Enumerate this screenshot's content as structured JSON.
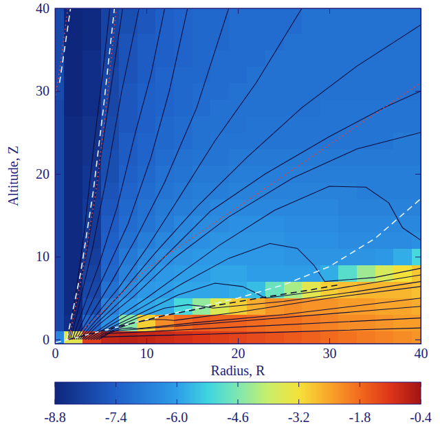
{
  "chart_data": {
    "type": "heatmap",
    "xlabel": "Radius, R",
    "ylabel": "Altitude, Z",
    "xlim": [
      0,
      40
    ],
    "ylim": [
      -0.5,
      40
    ],
    "xticks": [
      0,
      10,
      20,
      30,
      40
    ],
    "yticks": [
      0,
      10,
      20,
      30,
      40
    ],
    "x": [
      0,
      2,
      4,
      6,
      8,
      10,
      12,
      14,
      16,
      18,
      20,
      22,
      24,
      26,
      28,
      30,
      32,
      34,
      36,
      38,
      40
    ],
    "y": [
      0,
      2,
      4,
      6,
      8,
      10,
      12,
      14,
      16,
      18,
      20,
      22,
      24,
      26,
      28,
      30,
      32,
      34,
      36,
      38,
      40
    ],
    "cells": [
      [
        -6.5,
        -3.5,
        -1.2,
        -0.8,
        -0.7,
        -0.8,
        -0.9,
        -1.0,
        -1.1,
        -1.2,
        -1.3,
        -1.4,
        -1.5,
        -1.6,
        -1.7,
        -1.8,
        -1.9,
        -2.0,
        -2.1,
        -2.2,
        -2.3
      ],
      [
        -8.0,
        -8.6,
        -7.2,
        -6.3,
        -4.5,
        -3.0,
        -2.2,
        -1.8,
        -1.6,
        -1.7,
        -1.7,
        -1.8,
        -1.9,
        -1.9,
        -2.0,
        -2.1,
        -2.2,
        -2.2,
        -2.3,
        -2.4,
        -2.4
      ],
      [
        -8.0,
        -8.7,
        -7.8,
        -6.6,
        -6.1,
        -5.9,
        -5.8,
        -5.2,
        -4.4,
        -3.6,
        -3.0,
        -2.6,
        -2.3,
        -2.2,
        -2.3,
        -2.3,
        -2.4,
        -2.4,
        -2.5,
        -2.5,
        -2.6
      ],
      [
        -8.0,
        -8.7,
        -8.0,
        -7.0,
        -6.4,
        -6.1,
        -6.0,
        -5.9,
        -5.9,
        -5.9,
        -5.8,
        -5.6,
        -4.8,
        -4.2,
        -3.5,
        -3.0,
        -2.8,
        -2.7,
        -2.7,
        -2.7,
        -2.8
      ],
      [
        -8.0,
        -8.7,
        -8.1,
        -7.2,
        -6.6,
        -6.3,
        -6.1,
        -6.0,
        -6.0,
        -5.9,
        -5.9,
        -6.0,
        -6.0,
        -6.0,
        -6.0,
        -5.8,
        -5.0,
        -4.3,
        -3.7,
        -3.2,
        -2.9
      ],
      [
        -8.0,
        -8.7,
        -8.2,
        -7.3,
        -6.8,
        -6.5,
        -6.3,
        -6.2,
        -6.1,
        -6.1,
        -6.1,
        -6.1,
        -6.1,
        -6.2,
        -6.2,
        -6.2,
        -6.2,
        -6.2,
        -6.1,
        -5.8,
        -5.2
      ],
      [
        -8.0,
        -8.7,
        -8.3,
        -7.4,
        -7.0,
        -6.7,
        -6.5,
        -6.4,
        -6.3,
        -6.2,
        -6.2,
        -6.2,
        -6.2,
        -6.3,
        -6.3,
        -6.3,
        -6.4,
        -6.4,
        -6.4,
        -6.4,
        -6.3
      ],
      [
        -8.0,
        -8.7,
        -8.3,
        -7.5,
        -7.1,
        -6.9,
        -6.7,
        -6.5,
        -6.4,
        -6.4,
        -6.3,
        -6.3,
        -6.3,
        -6.4,
        -6.4,
        -6.4,
        -6.5,
        -6.5,
        -6.5,
        -6.5,
        -6.5
      ],
      [
        -8.0,
        -8.7,
        -8.3,
        -7.6,
        -7.2,
        -7.0,
        -6.8,
        -6.7,
        -6.6,
        -6.5,
        -6.5,
        -6.5,
        -6.5,
        -6.5,
        -6.5,
        -6.5,
        -6.6,
        -6.6,
        -6.6,
        -6.6,
        -6.6
      ],
      [
        -8.0,
        -8.7,
        -8.4,
        -7.7,
        -7.3,
        -7.1,
        -6.9,
        -6.8,
        -6.7,
        -6.7,
        -6.6,
        -6.6,
        -6.6,
        -6.6,
        -6.6,
        -6.6,
        -6.6,
        -6.7,
        -6.7,
        -6.7,
        -6.7
      ],
      [
        -8.0,
        -8.7,
        -8.4,
        -7.8,
        -7.4,
        -7.2,
        -7.0,
        -6.9,
        -6.8,
        -6.8,
        -6.7,
        -6.7,
        -6.7,
        -6.7,
        -6.7,
        -6.7,
        -6.7,
        -6.7,
        -6.7,
        -6.7,
        -6.7
      ],
      [
        -8.0,
        -8.7,
        -8.5,
        -7.8,
        -7.5,
        -7.3,
        -7.1,
        -7.0,
        -6.9,
        -6.9,
        -6.8,
        -6.8,
        -6.8,
        -6.8,
        -6.8,
        -6.8,
        -6.8,
        -6.8,
        -6.8,
        -6.8,
        -6.8
      ],
      [
        -8.0,
        -8.7,
        -8.5,
        -7.9,
        -7.5,
        -7.3,
        -7.2,
        -7.1,
        -7.0,
        -6.9,
        -6.9,
        -6.9,
        -6.9,
        -6.9,
        -6.9,
        -6.9,
        -6.9,
        -6.9,
        -6.9,
        -6.8,
        -6.8
      ],
      [
        -8.0,
        -8.7,
        -8.5,
        -7.9,
        -7.6,
        -7.4,
        -7.2,
        -7.1,
        -7.0,
        -7.0,
        -7.0,
        -6.9,
        -6.9,
        -6.9,
        -6.9,
        -6.9,
        -6.9,
        -6.9,
        -6.9,
        -6.9,
        -6.9
      ],
      [
        -8.0,
        -8.8,
        -8.6,
        -8.0,
        -7.6,
        -7.4,
        -7.3,
        -7.2,
        -7.1,
        -7.0,
        -7.0,
        -7.0,
        -7.0,
        -7.0,
        -7.0,
        -6.9,
        -6.9,
        -6.9,
        -6.9,
        -6.9,
        -6.9
      ],
      [
        -7.9,
        -8.8,
        -8.6,
        -8.0,
        -7.6,
        -7.4,
        -7.3,
        -7.2,
        -7.1,
        -7.1,
        -7.0,
        -7.0,
        -7.0,
        -7.0,
        -7.0,
        -7.0,
        -7.0,
        -7.0,
        -7.0,
        -7.0,
        -7.0
      ],
      [
        -7.9,
        -8.8,
        -8.6,
        -8.0,
        -7.7,
        -7.5,
        -7.3,
        -7.2,
        -7.2,
        -7.1,
        -7.1,
        -7.0,
        -7.0,
        -7.0,
        -7.0,
        -7.0,
        -7.0,
        -7.0,
        -7.0,
        -7.0,
        -7.0
      ],
      [
        -7.9,
        -8.8,
        -8.6,
        -8.1,
        -7.7,
        -7.5,
        -7.4,
        -7.3,
        -7.2,
        -7.1,
        -7.1,
        -7.1,
        -7.0,
        -7.0,
        -7.0,
        -7.0,
        -7.0,
        -7.0,
        -7.0,
        -7.0,
        -7.0
      ],
      [
        -7.9,
        -8.8,
        -8.7,
        -8.1,
        -7.7,
        -7.5,
        -7.4,
        -7.3,
        -7.2,
        -7.2,
        -7.1,
        -7.1,
        -7.1,
        -7.0,
        -7.0,
        -7.0,
        -7.0,
        -7.0,
        -7.0,
        -7.0,
        -7.0
      ],
      [
        -7.9,
        -8.8,
        -8.7,
        -8.1,
        -7.8,
        -7.6,
        -7.4,
        -7.3,
        -7.2,
        -7.2,
        -7.1,
        -7.1,
        -7.1,
        -7.1,
        -7.0,
        -7.0,
        -7.0,
        -7.0,
        -7.0,
        -7.0,
        -7.0
      ],
      [
        -7.9,
        -8.8,
        -8.7,
        -8.1,
        -7.8,
        -7.6,
        -7.4,
        -7.3,
        -7.2,
        -7.2,
        -7.1,
        -7.1,
        -7.1,
        -7.1,
        -7.0,
        -7.0,
        -7.0,
        -7.0,
        -7.0,
        -7.0,
        -7.0
      ]
    ],
    "colorbar": {
      "range": [
        -8.8,
        -0.4
      ],
      "ticks": [
        -8.8,
        -7.4,
        {
          "value": -6,
          "label": "-6.0"
        },
        -4.6,
        -3.2,
        -1.8,
        -0.4
      ]
    },
    "series": [
      {
        "color": "#0c0c3c",
        "line_style": "solid",
        "x": [
          1.4,
          2.2,
          3.2,
          4.2,
          5.2,
          6.0
        ],
        "values": [
          0,
          5,
          13,
          23,
          32,
          40
        ]
      },
      {
        "color": "#0c0c3c",
        "line_style": "solid",
        "x": [
          1.55,
          2.4,
          3.7,
          5.0,
          6.2,
          7.4
        ],
        "values": [
          0,
          4.5,
          12,
          22,
          31,
          40
        ]
      },
      {
        "color": "#0c0c3c",
        "line_style": "solid",
        "x": [
          1.7,
          2.6,
          4.1,
          5.7,
          7.3,
          9.2
        ],
        "values": [
          0,
          4,
          11,
          20,
          30,
          40
        ]
      },
      {
        "color": "#0c0c3c",
        "line_style": "solid",
        "x": [
          1.9,
          2.9,
          4.8,
          6.8,
          8.8,
          10.5,
          12
        ],
        "values": [
          0,
          3.2,
          9,
          16,
          25,
          32,
          40
        ]
      },
      {
        "color": "#0c0c3c",
        "line_style": "solid",
        "x": [
          2.1,
          3.3,
          5.5,
          8,
          10.5,
          12.5,
          14.5
        ],
        "values": [
          0,
          2.8,
          8,
          14,
          22,
          30,
          40
        ]
      },
      {
        "color": "#0c0c3c",
        "line_style": "solid",
        "x": [
          2.3,
          3.7,
          6.2,
          9,
          12,
          15.5,
          19
        ],
        "values": [
          0,
          2.5,
          7,
          12.5,
          19,
          28,
          40
        ]
      },
      {
        "color": "#0c0c3c",
        "line_style": "solid",
        "x": [
          2.5,
          4.0,
          7,
          10,
          13.5,
          17.5,
          22,
          27
        ],
        "values": [
          0,
          2.3,
          6.3,
          11,
          17,
          24,
          31,
          40
        ]
      },
      {
        "color": "#0c0c3c",
        "line_style": "solid",
        "x": [
          2.7,
          4.3,
          7.4,
          11,
          15.5,
          21,
          27,
          33,
          40
        ],
        "values": [
          0,
          2.1,
          5.8,
          10.5,
          16,
          22,
          28,
          33,
          38
        ]
      },
      {
        "color": "#0c0c3c",
        "line_style": "solid",
        "x": [
          2.9,
          4.6,
          8,
          12,
          17,
          23,
          30,
          36,
          40
        ],
        "values": [
          0,
          2.0,
          5.5,
          10,
          15.5,
          20,
          24.5,
          28,
          30
        ]
      },
      {
        "color": "#0c0c3c",
        "line_style": "solid",
        "x": [
          3.1,
          4.9,
          8.6,
          13,
          19,
          26,
          33,
          40
        ],
        "values": [
          0,
          1.9,
          5.2,
          9.8,
          14.8,
          19.5,
          23,
          25
        ]
      },
      {
        "color": "#0c0c3c",
        "line_style": "solid",
        "x": [
          3.3,
          5.8,
          10,
          14,
          18,
          24,
          30,
          34,
          36.5,
          38,
          40
        ],
        "values": [
          0,
          1.9,
          5.0,
          8.2,
          11.4,
          15.6,
          18.5,
          18.4,
          16.5,
          13.5,
          12
        ]
      },
      {
        "color": "#0c0c3c",
        "line_style": "solid",
        "x": [
          3.6,
          6,
          10,
          14,
          19,
          23.5,
          26.5,
          28.3,
          29.5,
          35,
          40
        ],
        "values": [
          0,
          1.7,
          4.2,
          6.8,
          9.8,
          11.6,
          11,
          9,
          7,
          7.5,
          8.6
        ]
      },
      {
        "color": "#0c0c3c",
        "line_style": "solid",
        "x": [
          3.9,
          6.2,
          10,
          13.5,
          17.5,
          20.5,
          22,
          23,
          30,
          40
        ],
        "values": [
          0,
          1.5,
          3.5,
          5.4,
          6.8,
          6.4,
          5.6,
          5.0,
          6.0,
          7.8
        ]
      },
      {
        "color": "#0c0c3c",
        "line_style": "solid",
        "x": [
          4.2,
          6.3,
          9,
          12,
          14.5,
          16.2,
          17.3,
          25,
          33,
          40
        ],
        "values": [
          0,
          1.3,
          2.6,
          3.8,
          4.2,
          4.0,
          3.8,
          4.6,
          5.8,
          7.0
        ]
      },
      {
        "color": "#0c0c3c",
        "line_style": "solid",
        "x": [
          4.5,
          6.3,
          8.5,
          10.5,
          12,
          13,
          20,
          30,
          40
        ],
        "values": [
          0,
          1.1,
          2.0,
          2.4,
          2.4,
          2.3,
          3.3,
          5,
          6.4
        ]
      },
      {
        "color": "#0c0c3c",
        "line_style": "solid",
        "x": [
          4.8,
          6,
          7.3,
          8.3,
          9,
          15,
          25,
          40
        ],
        "values": [
          0,
          0.8,
          1.3,
          1.4,
          1.3,
          2.0,
          3.0,
          5.0
        ]
      },
      {
        "color": "#0c0c3c",
        "line_style": "solid",
        "x": [
          6,
          20,
          40
        ],
        "values": [
          1.0,
          2.2,
          4.0
        ]
      },
      {
        "color": "#0c0c3c",
        "line_style": "solid",
        "x": [
          5.5,
          20,
          40
        ],
        "values": [
          0.7,
          1.5,
          2.6
        ]
      },
      {
        "color": "#0c0c3c",
        "line_style": "solid",
        "x": [
          5,
          15,
          25,
          40
        ],
        "values": [
          0.3,
          0.6,
          0.9,
          1.4
        ]
      },
      {
        "color": "#e8f4ff",
        "line_style": "dashed",
        "x": [
          1.3,
          2.8,
          4.2,
          5.3,
          6.0,
          6.5
        ],
        "values": [
          0,
          8,
          18,
          28,
          35,
          40
        ]
      },
      {
        "color": "#e8f4ff",
        "line_style": "dashed",
        "x": [
          0.5,
          1.1,
          1.7
        ],
        "values": [
          31,
          35.5,
          40
        ]
      },
      {
        "color": "#e8f4ff",
        "line_style": "dashed",
        "x": [
          0,
          5,
          10,
          15,
          20,
          25,
          30,
          35,
          40
        ],
        "values": [
          -0.4,
          1.0,
          2.4,
          3.7,
          5.0,
          6.6,
          8.8,
          12.2,
          17
        ]
      },
      {
        "color": "#101030",
        "line_style": "dashed",
        "x": [
          1.5,
          6,
          12,
          18,
          24,
          28,
          31
        ],
        "values": [
          0,
          1.3,
          2.9,
          4.2,
          5.3,
          6.0,
          6.6
        ]
      },
      {
        "color": "#e04040",
        "line_style": "dotted",
        "x": [
          1.5,
          3,
          4.5,
          5.6,
          6.7
        ],
        "values": [
          0,
          8,
          18,
          28,
          40
        ]
      },
      {
        "color": "#e04040",
        "line_style": "dotted",
        "x": [
          2,
          10,
          20,
          30,
          40
        ],
        "values": [
          0,
          8.5,
          16,
          23.5,
          31
        ]
      },
      {
        "color": "#e04040",
        "line_style": "dotted",
        "x": [
          0,
          0.7,
          1.4
        ],
        "values": [
          29,
          34,
          40
        ]
      }
    ]
  }
}
